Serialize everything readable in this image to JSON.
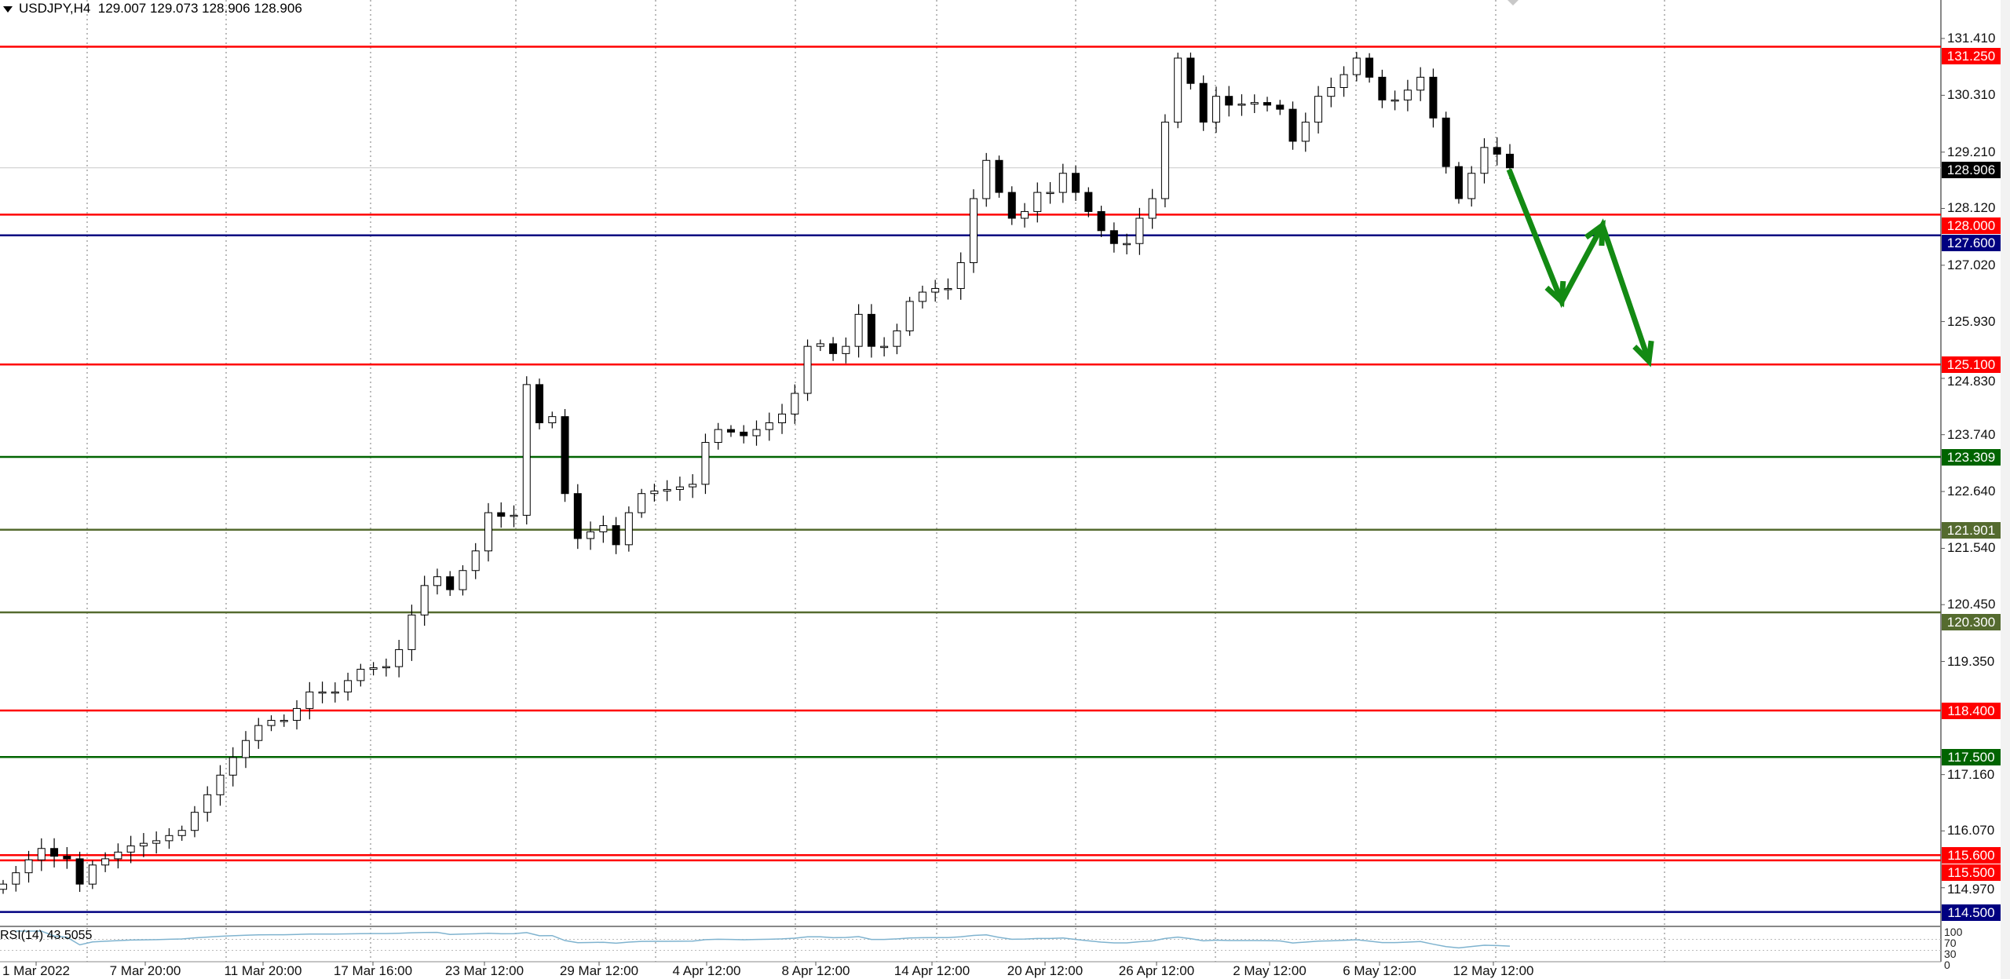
{
  "header": {
    "symbol": "USDJPY,H4",
    "ohlc": "129.007 129.073 128.906 128.906"
  },
  "colors": {
    "support_resistance_red": "#ff0000",
    "navy": "#000080",
    "dark_green": "#006400",
    "olive": "#556b2f",
    "arrow_green": "#138a13",
    "rsi_line": "#7fb3cf",
    "current_price_bg": "#000000"
  },
  "chart_data": {
    "type": "candlestick",
    "title": "USDJPY,H4",
    "timeframe": "H4",
    "ylim": [
      114.2,
      131.6
    ],
    "y_ticks": [
      "131.410",
      "130.310",
      "129.210",
      "128.120",
      "127.020",
      "125.930",
      "124.830",
      "123.740",
      "122.640",
      "121.540",
      "120.450",
      "119.350",
      "117.160",
      "116.070",
      "114.970"
    ],
    "x_tick_labels": [
      "1 Mar 2022",
      "7 Mar 20:00",
      "11 Mar 20:00",
      "17 Mar 16:00",
      "23 Mar 12:00",
      "29 Mar 12:00",
      "4 Apr 12:00",
      "8 Apr 12:00",
      "14 Apr 12:00",
      "20 Apr 12:00",
      "26 Apr 12:00",
      "2 May 12:00",
      "6 May 12:00",
      "12 May 12:00"
    ],
    "grid": "vertical-dotted",
    "closes": [
      115.04,
      115.26,
      115.51,
      115.73,
      115.58,
      115.53,
      115.04,
      115.41,
      115.53,
      115.66,
      115.78,
      115.83,
      115.88,
      115.98,
      116.08,
      116.43,
      116.77,
      117.15,
      117.49,
      117.82,
      118.11,
      118.21,
      118.21,
      118.44,
      118.76,
      118.76,
      118.76,
      118.98,
      119.2,
      119.23,
      119.25,
      119.58,
      120.25,
      120.82,
      120.99,
      120.74,
      121.11,
      121.49,
      122.23,
      122.16,
      122.18,
      124.71,
      123.97,
      124.09,
      122.6,
      121.73,
      121.86,
      121.98,
      121.61,
      122.23,
      122.6,
      122.65,
      122.68,
      122.73,
      122.78,
      123.59,
      123.84,
      123.79,
      123.72,
      123.84,
      123.97,
      124.14,
      124.54,
      125.45,
      125.5,
      125.31,
      125.45,
      126.07,
      125.45,
      125.45,
      125.75,
      126.32,
      126.5,
      126.57,
      126.57,
      127.07,
      128.31,
      129.05,
      128.43,
      127.93,
      128.06,
      128.43,
      128.43,
      128.8,
      128.43,
      128.06,
      127.69,
      127.44,
      127.44,
      127.93,
      128.31,
      129.79,
      131.03,
      130.54,
      129.79,
      130.29,
      130.12,
      130.14,
      130.17,
      130.12,
      130.04,
      129.42,
      129.79,
      130.29,
      130.46,
      130.71,
      131.03,
      130.66,
      130.22,
      130.22,
      130.41,
      130.66,
      129.87,
      128.93,
      128.31,
      128.8,
      129.3,
      129.17,
      128.906
    ],
    "current_price": "128.906",
    "levels": [
      {
        "price": 131.25,
        "label": "131.250",
        "color": "#ff0000"
      },
      {
        "price": 128.0,
        "label": "128.000",
        "color": "#ff0000"
      },
      {
        "price": 127.6,
        "label": "127.600",
        "color": "#000080"
      },
      {
        "price": 125.1,
        "label": "125.100",
        "color": "#ff0000"
      },
      {
        "price": 123.309,
        "label": "123.309",
        "color": "#006400"
      },
      {
        "price": 121.901,
        "label": "121.901",
        "color": "#556b2f"
      },
      {
        "price": 120.3,
        "label": "120.300",
        "color": "#556b2f"
      },
      {
        "price": 118.4,
        "label": "118.400",
        "color": "#ff0000"
      },
      {
        "price": 117.5,
        "label": "117.500",
        "color": "#006400"
      },
      {
        "price": 115.6,
        "label": "115.600",
        "color": "#ff0000"
      },
      {
        "price": 115.5,
        "label": "115.500",
        "color": "#ff0000"
      },
      {
        "price": 114.5,
        "label": "114.500",
        "color": "#000080"
      }
    ],
    "indicator": {
      "name": "RSI(14)",
      "label": "RSI(14) 43.5055",
      "axis_labels": [
        "100",
        "70",
        "30",
        "0"
      ],
      "levels": [
        70,
        30
      ]
    }
  }
}
